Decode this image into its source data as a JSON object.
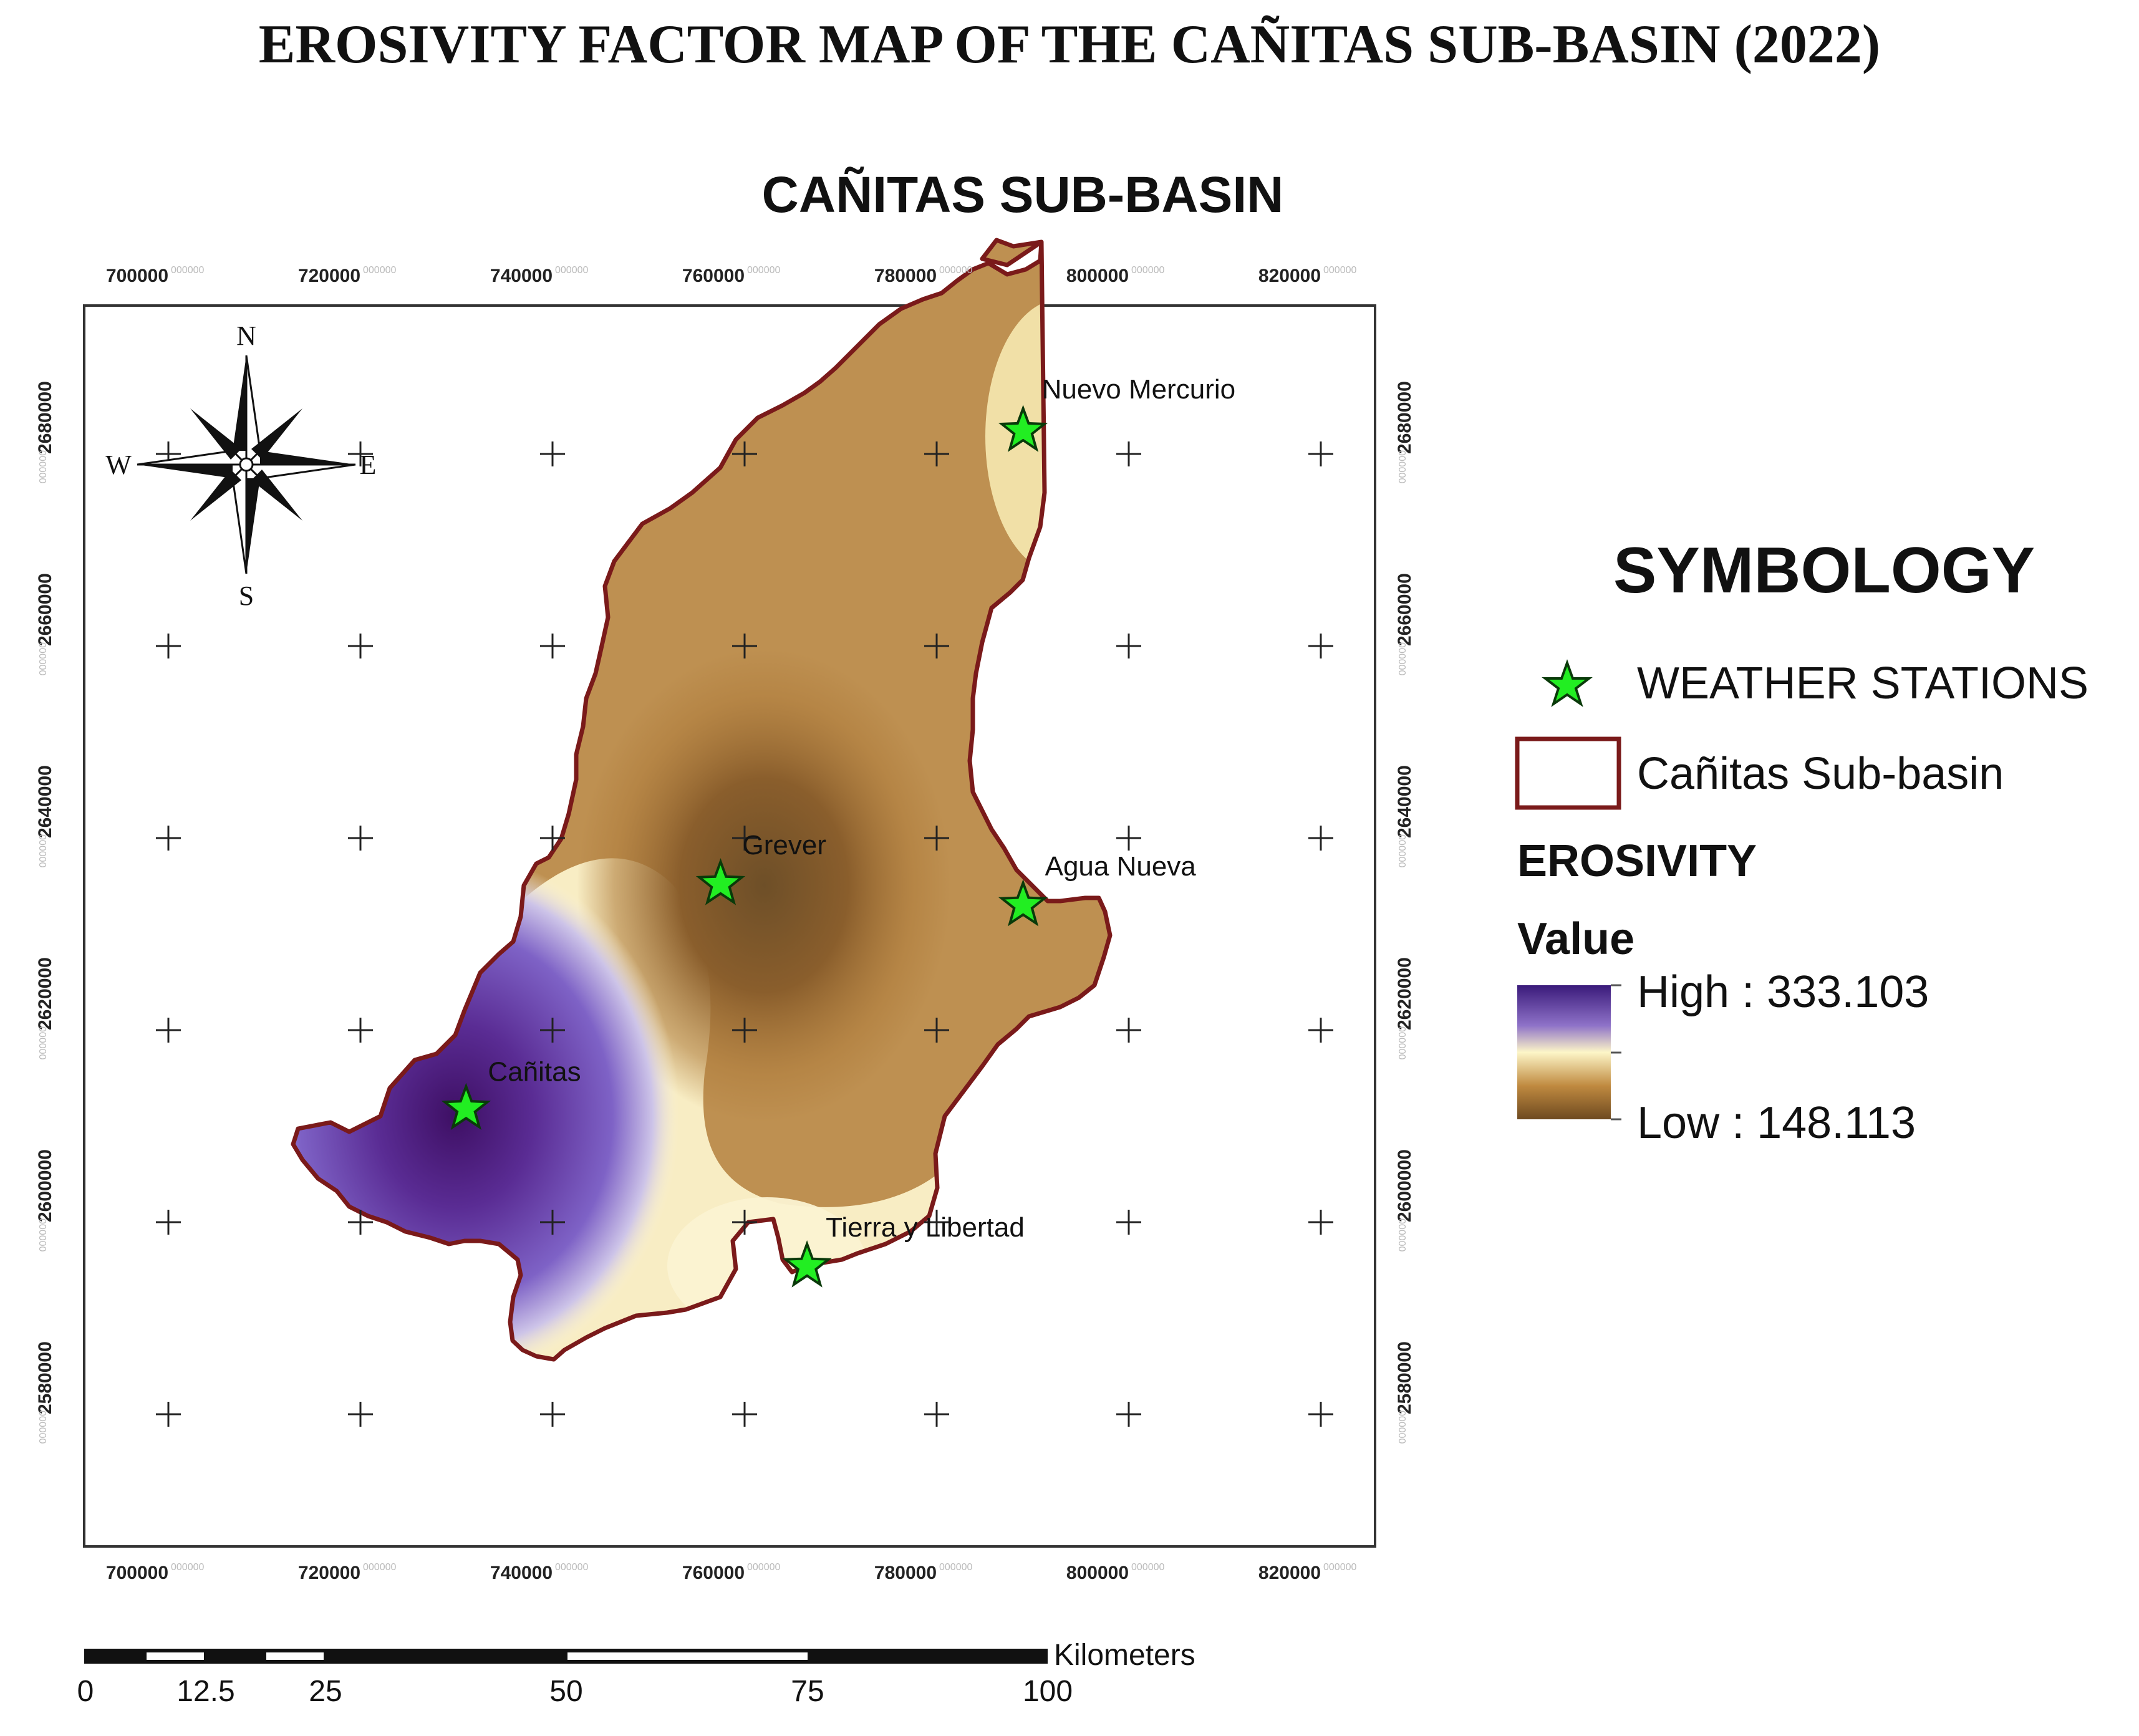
{
  "main_title": "EROSIVITY FACTOR MAP OF THE CAÑITAS SUB-BASIN (2022)",
  "map_title": "CAÑITAS SUB-BASIN",
  "x_ticks": [
    "700000",
    "720000",
    "740000",
    "760000",
    "780000",
    "800000",
    "820000"
  ],
  "y_ticks": [
    "2680000",
    "2660000",
    "2640000",
    "2620000",
    "2600000",
    "2580000"
  ],
  "tick_suffix": "000000",
  "compass": {
    "n": "N",
    "s": "S",
    "e": "E",
    "w": "W"
  },
  "stations": [
    {
      "name": "Nuevo Mercurio",
      "x": 789000,
      "y": 2682400
    },
    {
      "name": "Grever",
      "x": 757500,
      "y": 2635200
    },
    {
      "name": "Agua Nueva",
      "x": 789000,
      "y": 2633000
    },
    {
      "name": "Cañitas",
      "x": 731000,
      "y": 2611800
    },
    {
      "name": "Tierra y Libertad",
      "x": 766500,
      "y": 2595400
    }
  ],
  "legend": {
    "title": "SYMBOLOGY",
    "stations_label": "WEATHER STATIONS",
    "basin_label": "Cañitas Sub-basin",
    "erosivity_heading": "EROSIVITY",
    "value_heading": "Value",
    "high_label": "High : 333.103",
    "low_label": "Low : 148.113",
    "high_value": 333.103,
    "low_value": 148.113
  },
  "scale_bar": {
    "unit": "Kilometers",
    "labels": [
      "0",
      "12.5",
      "25",
      "50",
      "75",
      "100"
    ]
  },
  "colors": {
    "basin_outline": "#7a1a1a",
    "station_star": "#22ee22",
    "high": "#3a1a7a",
    "mid": "#fdf6c8",
    "low": "#7e5422"
  }
}
